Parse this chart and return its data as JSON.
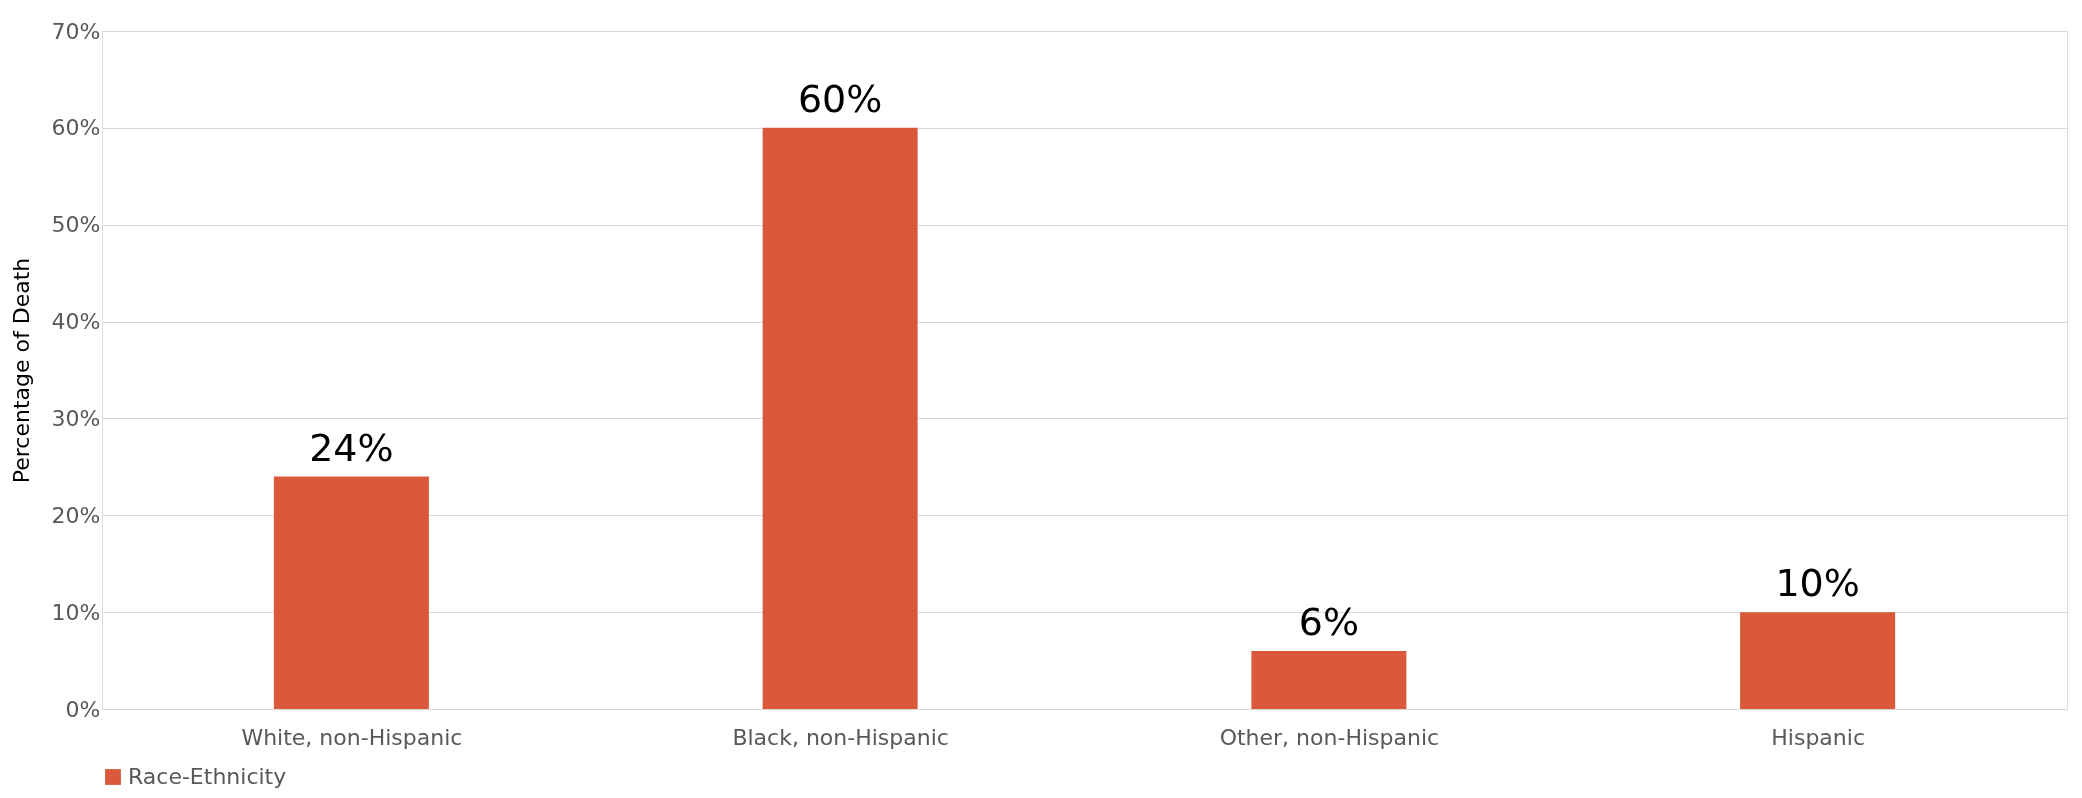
{
  "chart_data": {
    "type": "bar",
    "ylabel": "Percentage of Death",
    "categories": [
      "White, non-Hispanic",
      "Black, non-Hispanic",
      "Other, non-Hispanic",
      "Hispanic"
    ],
    "series": [
      {
        "name": "Race-Ethnicity",
        "color": "#d9593a",
        "values": [
          24,
          60,
          6,
          10
        ],
        "value_labels": [
          "24%",
          "60%",
          "6%",
          "10%"
        ]
      }
    ],
    "ylim": [
      0,
      70
    ],
    "yticks": [
      {
        "value": 0,
        "label": "0%"
      },
      {
        "value": 10,
        "label": "10%"
      },
      {
        "value": 20,
        "label": "20%"
      },
      {
        "value": 30,
        "label": "30%"
      },
      {
        "value": 40,
        "label": "40%"
      },
      {
        "value": 50,
        "label": "50%"
      },
      {
        "value": 60,
        "label": "60%"
      },
      {
        "value": 70,
        "label": "70%"
      }
    ],
    "grid": "y",
    "legend": "bottom"
  }
}
